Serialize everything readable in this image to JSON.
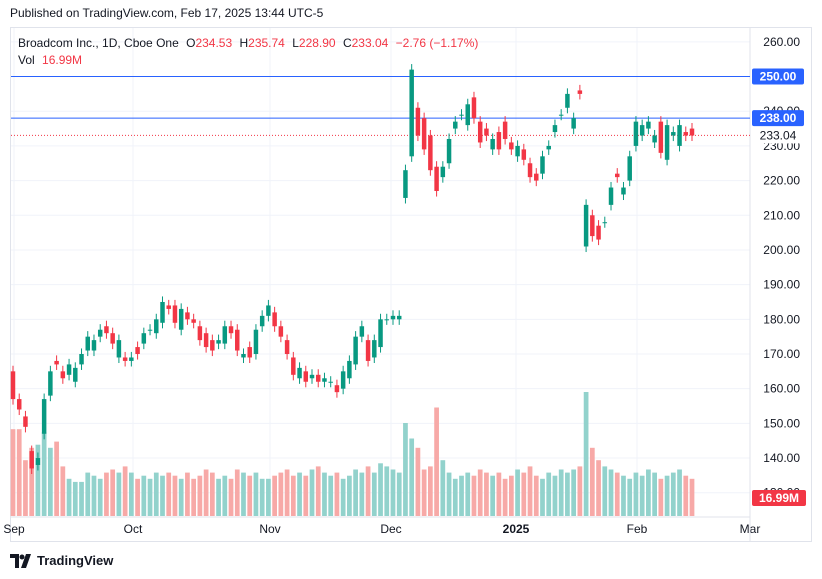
{
  "header": {
    "published": "Published on TradingView.com, Feb 17, 2025 13:44 UTC-5"
  },
  "legend": {
    "symbol": "Broadcom Inc., 1D, Cboe One",
    "o_label": "O",
    "o_value": "234.53",
    "h_label": "H",
    "h_value": "235.74",
    "l_label": "L",
    "l_value": "228.90",
    "c_label": "C",
    "c_value": "233.04",
    "change": "−2.76 (−1.17%)",
    "vol_label": "Vol",
    "vol_value": "16.99M"
  },
  "footer": {
    "brand": "TradingView"
  },
  "colors": {
    "up": "#089981",
    "down": "#f23645",
    "vol_up": "#92d2cc",
    "vol_down": "#f7a9a7",
    "hline": "#2962ff"
  },
  "chart_data": {
    "type": "candlestick",
    "y_ticks": [
      "260.00",
      "250.00",
      "240.00",
      "230.00",
      "220.00",
      "210.00",
      "200.00",
      "190.00",
      "180.00",
      "170.00",
      "160.00",
      "150.00",
      "140.00",
      "130.00"
    ],
    "y_range": [
      123,
      264
    ],
    "x_labels": [
      "Sep",
      "Oct",
      "Nov",
      "Dec",
      "2025",
      "Feb",
      "Mar"
    ],
    "horizontal_lines": [
      "250.00",
      "238.00"
    ],
    "last_price": "233.04",
    "last_volume": "16.99M",
    "candles": [
      [
        165,
        157
      ],
      [
        157,
        154
      ],
      [
        152,
        149
      ],
      [
        142,
        137
      ],
      [
        138,
        140
      ],
      [
        147,
        157
      ],
      [
        158,
        165
      ],
      [
        168,
        167
      ],
      [
        165,
        163
      ],
      [
        164,
        167
      ],
      [
        162,
        166
      ],
      [
        167,
        170
      ],
      [
        171,
        175
      ],
      [
        171,
        174
      ],
      [
        175,
        177
      ],
      [
        178,
        176
      ],
      [
        176,
        173
      ],
      [
        169,
        174
      ],
      [
        169,
        168
      ],
      [
        168,
        169
      ],
      [
        172,
        170
      ],
      [
        173,
        176
      ],
      [
        177,
        177
      ],
      [
        176,
        180
      ],
      [
        179,
        185
      ],
      [
        184,
        183
      ],
      [
        184,
        179
      ],
      [
        177,
        183
      ],
      [
        182,
        180
      ],
      [
        180,
        179
      ],
      [
        178,
        174
      ],
      [
        176,
        172
      ],
      [
        174,
        171
      ],
      [
        173,
        174
      ],
      [
        173,
        178
      ],
      [
        178,
        176
      ],
      [
        177,
        171
      ],
      [
        169,
        170
      ],
      [
        172,
        169
      ],
      [
        170,
        177
      ],
      [
        178,
        181
      ],
      [
        181,
        184
      ],
      [
        182,
        178
      ],
      [
        178,
        175
      ],
      [
        174,
        170
      ],
      [
        169,
        164
      ],
      [
        163,
        166
      ],
      [
        165,
        162
      ],
      [
        163,
        164
      ],
      [
        164,
        162
      ],
      [
        162,
        163
      ],
      [
        162,
        162
      ],
      [
        161,
        159
      ],
      [
        160,
        165
      ],
      [
        163,
        168
      ],
      [
        167,
        175
      ],
      [
        175,
        178
      ],
      [
        174,
        168
      ],
      [
        169,
        174
      ],
      [
        172,
        180
      ],
      [
        180,
        180
      ],
      [
        180,
        181
      ],
      [
        180,
        181
      ],
      [
        215,
        223
      ],
      [
        227,
        252
      ],
      [
        241,
        233
      ],
      [
        238,
        229
      ],
      [
        233,
        223
      ],
      [
        224,
        217
      ],
      [
        221,
        224
      ],
      [
        225,
        232
      ],
      [
        235,
        237
      ],
      [
        239,
        239
      ],
      [
        236,
        242
      ],
      [
        244,
        238
      ],
      [
        237,
        231
      ],
      [
        235,
        233
      ],
      [
        229,
        232
      ],
      [
        234,
        229
      ],
      [
        237,
        232
      ],
      [
        231,
        229
      ],
      [
        227,
        230
      ],
      [
        229,
        226
      ],
      [
        225,
        221
      ],
      [
        222,
        220
      ],
      [
        222,
        227
      ],
      [
        229,
        230
      ],
      [
        234,
        236
      ],
      [
        239,
        239
      ],
      [
        241,
        245
      ],
      [
        235,
        238
      ],
      [
        246,
        245
      ],
      [
        201,
        213
      ],
      [
        210,
        204
      ],
      [
        207,
        203
      ],
      [
        208,
        208
      ],
      [
        213,
        218
      ],
      [
        222,
        221
      ],
      [
        216,
        218
      ],
      [
        220,
        227
      ],
      [
        230,
        237
      ],
      [
        233,
        236
      ],
      [
        235,
        237
      ],
      [
        231,
        233
      ],
      [
        237,
        228
      ],
      [
        226,
        236
      ],
      [
        233,
        234
      ],
      [
        230,
        236
      ],
      [
        234,
        233
      ],
      [
        235,
        233
      ]
    ],
    "volumes": [
      28,
      28,
      18,
      22,
      23,
      27,
      22,
      24,
      16,
      12,
      11,
      11,
      14,
      13,
      12,
      14,
      15,
      14,
      16,
      14,
      12,
      13,
      12,
      14,
      13,
      14,
      13,
      12,
      14,
      12,
      13,
      15,
      14,
      12,
      13,
      12,
      15,
      14,
      13,
      14,
      12,
      12,
      13,
      14,
      15,
      13,
      14,
      13,
      15,
      16,
      14,
      13,
      14,
      12,
      13,
      15,
      14,
      16,
      14,
      17,
      16,
      15,
      14,
      30,
      25,
      22,
      15,
      16,
      35,
      18,
      14,
      12,
      13,
      14,
      13,
      15,
      14,
      13,
      14,
      12,
      13,
      15,
      14,
      16,
      13,
      12,
      14,
      13,
      15,
      14,
      15,
      16,
      40,
      22,
      18,
      16,
      15,
      14,
      13,
      12,
      14,
      13,
      15,
      14,
      12,
      13,
      14,
      15,
      13,
      12
    ]
  }
}
